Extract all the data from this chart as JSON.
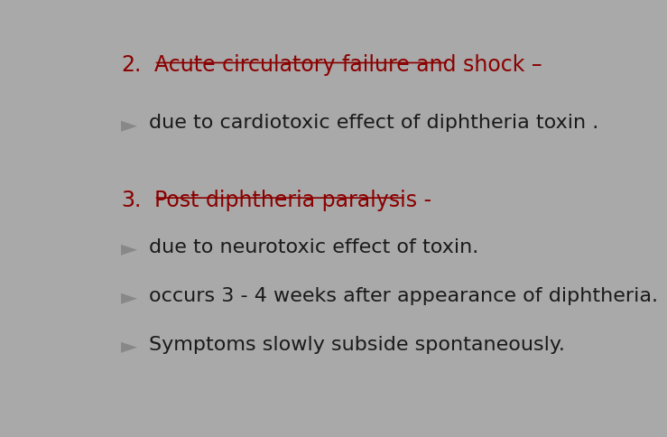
{
  "bg_color": "#a9a9a9",
  "left_bar_black_color": "#1a1a1a",
  "left_bar_pink_color": "#cc1166",
  "left_bar_gray_color": "#555555",
  "left_bar_gold_color": "#e0a020",
  "heading1_num": "2.",
  "heading1_text": "Acute circulatory failure and shock –",
  "heading1_color": "#8b0000",
  "heading2_num": "3.",
  "heading2_text": "Post diphtheria paralysis -",
  "heading2_color": "#8b0000",
  "bullet_color": "#888888",
  "text_color": "#1a1a1a",
  "bullets": [
    "due to cardiotoxic effect of diphtheria toxin .",
    "due to neurotoxic effect of toxin.",
    "occurs 3 - 4 weeks after appearance of diphtheria.",
    "Symptoms slowly subside spontaneously."
  ],
  "font_size_heading": 17,
  "font_size_bullet": 16
}
